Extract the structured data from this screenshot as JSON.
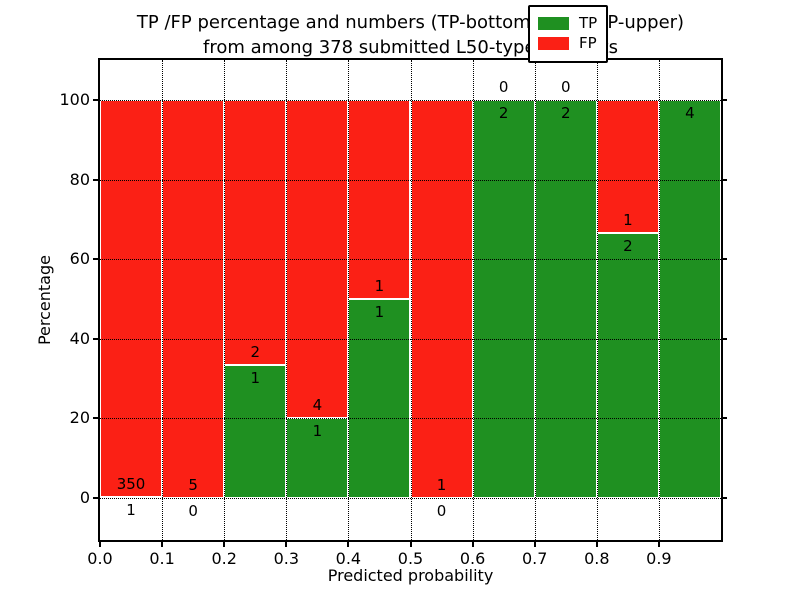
{
  "chart_data": {
    "type": "bar",
    "stacked": true,
    "title_lines": [
      "TP /FP percentage and numbers (TP-bottom value, FP-upper)",
      "from among 378 submitted L50-type contacts"
    ],
    "xlabel": "Predicted probability",
    "ylabel": "Percentage",
    "total_contacts": 378,
    "xlim": [
      0.0,
      1.0
    ],
    "ylim": [
      -10.6,
      110
    ],
    "x_ticks": [
      "0.0",
      "0.1",
      "0.2",
      "0.3",
      "0.4",
      "0.5",
      "0.6",
      "0.7",
      "0.8",
      "0.9"
    ],
    "y_ticks": [
      0,
      20,
      40,
      60,
      80,
      100
    ],
    "grid": true,
    "categories": [
      "0.0-0.1",
      "0.1-0.2",
      "0.2-0.3",
      "0.3-0.4",
      "0.4-0.5",
      "0.5-0.6",
      "0.6-0.7",
      "0.7-0.8",
      "0.8-0.9",
      "0.9-1.0"
    ],
    "series": [
      {
        "name": "TP",
        "values": [
          1,
          0,
          1,
          1,
          1,
          0,
          2,
          2,
          2,
          4
        ]
      },
      {
        "name": "FP",
        "values": [
          350,
          5,
          2,
          4,
          1,
          1,
          0,
          0,
          1,
          0
        ]
      }
    ],
    "bins": [
      {
        "x0": 0.0,
        "x1": 0.1,
        "tp_pct": 0.28,
        "tp_label": "1",
        "fp_label": "350"
      },
      {
        "x0": 0.1,
        "x1": 0.2,
        "tp_pct": 0,
        "tp_label": "0",
        "fp_label": "5"
      },
      {
        "x0": 0.2,
        "x1": 0.3,
        "tp_pct": 33.33,
        "tp_label": "1",
        "fp_label": "2"
      },
      {
        "x0": 0.3,
        "x1": 0.4,
        "tp_pct": 20,
        "tp_label": "1",
        "fp_label": "4"
      },
      {
        "x0": 0.4,
        "x1": 0.5,
        "tp_pct": 50,
        "tp_label": "1",
        "fp_label": "1"
      },
      {
        "x0": 0.5,
        "x1": 0.6,
        "tp_pct": 0,
        "tp_label": "0",
        "fp_label": "1"
      },
      {
        "x0": 0.6,
        "x1": 0.7,
        "tp_pct": 100,
        "tp_label": "2",
        "fp_label": "0"
      },
      {
        "x0": 0.7,
        "x1": 0.8,
        "tp_pct": 100,
        "tp_label": "2",
        "fp_label": "0"
      },
      {
        "x0": 0.8,
        "x1": 0.9,
        "tp_pct": 66.67,
        "tp_label": "2",
        "fp_label": "1"
      },
      {
        "x0": 0.9,
        "x1": 1.0,
        "tp_pct": 100,
        "tp_label": "4",
        "fp_label": ""
      }
    ],
    "legend": {
      "position": "upper right",
      "entries": [
        {
          "label": "TP",
          "color": "#1f9021"
        },
        {
          "label": "FP",
          "color": "#fb2015"
        }
      ]
    },
    "colors": {
      "tp": "#1f9021",
      "fp": "#fb2015",
      "bar_edge": "#ffffff",
      "grid": "#000000",
      "background": "#ffffff",
      "text": "#000000"
    }
  }
}
